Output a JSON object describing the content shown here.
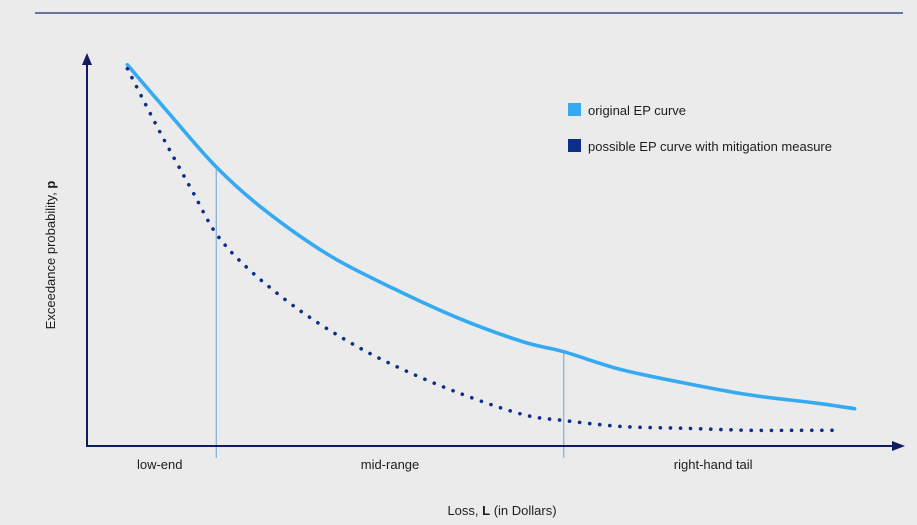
{
  "colors": {
    "background": "#ebebeb",
    "frame_line": "#1f2d6b",
    "axis": "#111b5e",
    "original_curve": "#35aaf2",
    "mitigation_curve": "#0d2f8a",
    "divider": "#7fb0d8"
  },
  "chart_data": {
    "type": "line",
    "title": "",
    "xlabel": {
      "prefix": "Loss, ",
      "symbol": "L",
      "suffix": " (in Dollars)"
    },
    "ylabel": {
      "prefix": "Exceedance probability, ",
      "symbol": "p"
    },
    "x_ticks_shown": false,
    "y_ticks_shown": false,
    "regions": [
      "low-end",
      "mid-range",
      "right-hand tail"
    ],
    "region_boundaries": [
      0.16,
      0.59
    ],
    "xlim": [
      0,
      1
    ],
    "ylim": [
      0,
      1
    ],
    "series": [
      {
        "name": "original EP curve",
        "style": "solid",
        "x": [
          0.05,
          0.1,
          0.16,
          0.22,
          0.3,
          0.38,
          0.46,
          0.54,
          0.59,
          0.66,
          0.74,
          0.82,
          0.9,
          0.95
        ],
        "y": [
          0.97,
          0.85,
          0.71,
          0.6,
          0.485,
          0.4,
          0.325,
          0.265,
          0.24,
          0.195,
          0.16,
          0.13,
          0.11,
          0.095
        ]
      },
      {
        "name": "possible EP curve with mitigation measure",
        "style": "dotted",
        "x": [
          0.05,
          0.09,
          0.13,
          0.16,
          0.2,
          0.26,
          0.32,
          0.38,
          0.46,
          0.54,
          0.59,
          0.66,
          0.74,
          0.82,
          0.88,
          0.93
        ],
        "y": [
          0.96,
          0.8,
          0.65,
          0.54,
          0.45,
          0.35,
          0.27,
          0.205,
          0.135,
          0.08,
          0.065,
          0.05,
          0.045,
          0.04,
          0.04,
          0.04
        ]
      }
    ],
    "legend_position": "top-right",
    "grid": false
  }
}
